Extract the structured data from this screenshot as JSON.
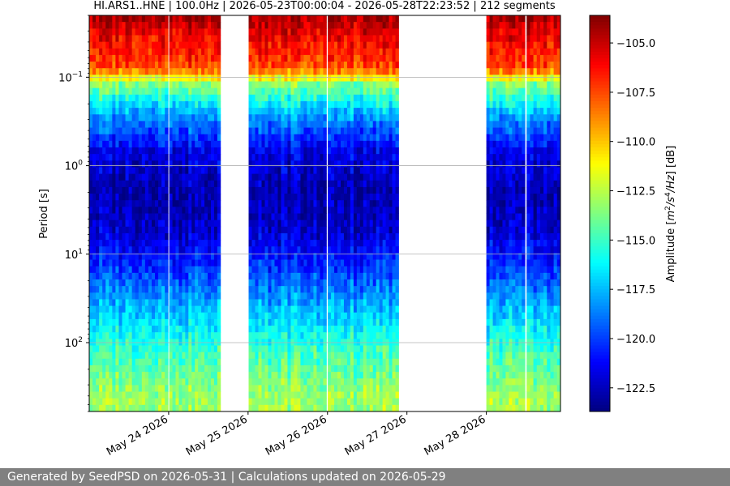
{
  "chart_data": {
    "type": "heatmap",
    "title": "HI.ARS1..HNE | 100.0Hz | 2026-05-23T00:00:04 - 2026-05-28T22:23:52 | 212 segments",
    "ylabel": "Period [s]",
    "colorbar_label": "Amplitude [m²/s⁴/Hz] [dB]",
    "colorbar_label_parts": {
      "prefix": "Amplitude [",
      "m": "m",
      "two": "2",
      "slash_s": "/s",
      "four": "4",
      "hz": "/Hz",
      "suffix": "] [dB]"
    },
    "colormap": "jet",
    "y_scale": "log",
    "y_range_s": [
      0.02,
      600
    ],
    "y_inverted": true,
    "y_ticks": [
      {
        "value": 0.1,
        "base": "10",
        "exp": "−1"
      },
      {
        "value": 1,
        "base": "10",
        "exp": "0"
      },
      {
        "value": 10,
        "base": "10",
        "exp": "1"
      },
      {
        "value": 100,
        "base": "10",
        "exp": "2"
      }
    ],
    "x_range": [
      "2026-05-23T00:00:04",
      "2026-05-28T22:23:52"
    ],
    "x_ticks": [
      {
        "date": "2026-05-24",
        "label": "May 24 2026"
      },
      {
        "date": "2026-05-25",
        "label": "May 25 2026"
      },
      {
        "date": "2026-05-26",
        "label": "May 26 2026"
      },
      {
        "date": "2026-05-27",
        "label": "May 27 2026"
      },
      {
        "date": "2026-05-28",
        "label": "May 28 2026"
      }
    ],
    "horizontal_grid": true,
    "data_segments": [
      {
        "start": "2026-05-23T00:00",
        "end": "2026-05-23T23:50"
      },
      {
        "start": "2026-05-24T00:10",
        "end": "2026-05-24T15:40"
      },
      {
        "start": "2026-05-25T00:10",
        "end": "2026-05-25T23:40"
      },
      {
        "start": "2026-05-26T00:05",
        "end": "2026-05-26T21:30"
      },
      {
        "start": "2026-05-28T00:00",
        "end": "2026-05-28T11:40"
      },
      {
        "start": "2026-05-28T12:10",
        "end": "2026-05-28T22:23"
      }
    ],
    "amplitude_profile_db": [
      {
        "period_s": 0.02,
        "db": -104.0
      },
      {
        "period_s": 0.03,
        "db": -105.5
      },
      {
        "period_s": 0.08,
        "db": -107.5
      },
      {
        "period_s": 0.12,
        "db": -113.5
      },
      {
        "period_s": 0.3,
        "db": -118.5
      },
      {
        "period_s": 0.7,
        "db": -121.5
      },
      {
        "period_s": 2,
        "db": -122.8
      },
      {
        "period_s": 6,
        "db": -122.0
      },
      {
        "period_s": 15,
        "db": -120.0
      },
      {
        "period_s": 40,
        "db": -117.5
      },
      {
        "period_s": 120,
        "db": -115.0
      },
      {
        "period_s": 400,
        "db": -113.0
      }
    ],
    "colorbar_range_db": [
      -123.7,
      -103.6
    ],
    "colorbar_ticks": [
      {
        "value": -105.0,
        "label": "−105.0"
      },
      {
        "value": -107.5,
        "label": "−107.5"
      },
      {
        "value": -110.0,
        "label": "−110.0"
      },
      {
        "value": -112.5,
        "label": "−112.5"
      },
      {
        "value": -115.0,
        "label": "−115.0"
      },
      {
        "value": -117.5,
        "label": "−117.5"
      },
      {
        "value": -120.0,
        "label": "−120.0"
      },
      {
        "value": -122.5,
        "label": "−122.5"
      }
    ]
  },
  "footer": {
    "text": "Generated by SeedPSD on 2026-05-31 | Calculations updated on 2026-05-29"
  }
}
